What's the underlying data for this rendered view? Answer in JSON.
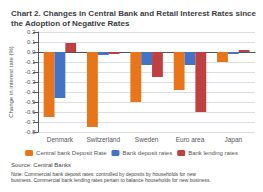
{
  "chart_data": {
    "type": "bar",
    "title": "Chart 2. Changes in Central Bank and Retail Interest Rates since the Adoption of Negative Rates",
    "categories": [
      "Denmark",
      "Switzerland",
      "Sweden",
      "Euro area",
      "Japan"
    ],
    "series": [
      {
        "name": "Central bank Deposit Rate",
        "color": "#E8751A",
        "values": [
          -0.65,
          -0.75,
          -0.5,
          -0.38,
          -0.1
        ]
      },
      {
        "name": "Bank deposit rates",
        "color": "#4472C4",
        "values": [
          -0.46,
          -0.03,
          -0.13,
          -0.13,
          -0.02
        ]
      },
      {
        "name": "Bank lending rates",
        "color": "#BF4040",
        "values": [
          0.09,
          -0.02,
          -0.25,
          -0.6,
          0.02
        ]
      }
    ],
    "ylabel": "Change in interest rate (%)",
    "ylim": [
      -0.8,
      0.2
    ],
    "yticks": [
      0.2,
      0.1,
      {
        "value": 0,
        "label": "0.0"
      },
      -0.1,
      -0.2,
      -0.3,
      -0.4,
      -0.5,
      -0.6,
      -0.7,
      -0.8
    ],
    "grid": true,
    "legend": "bottom",
    "annotations": [
      "Source: Central Banks",
      "Note: Commercial bank deposit rates: controlled by deposits by households for new business. Commercial bank lending rates pertain to balance households for new business."
    ]
  }
}
